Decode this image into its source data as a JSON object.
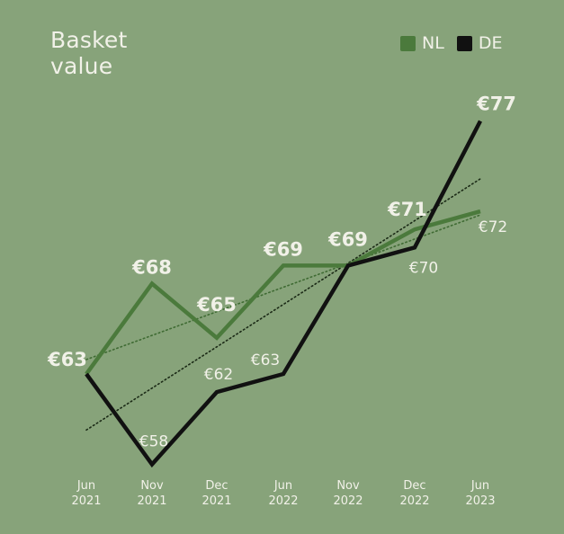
{
  "chart_data": {
    "type": "line",
    "title": "Basket\nvalue",
    "categories": [
      [
        "Jun",
        "2021"
      ],
      [
        "Nov",
        "2021"
      ],
      [
        "Dec",
        "2021"
      ],
      [
        "Jun",
        "2022"
      ],
      [
        "Nov",
        "2022"
      ],
      [
        "Dec",
        "2022"
      ],
      [
        "Jun",
        "2023"
      ]
    ],
    "ylim": [
      56,
      79
    ],
    "legend_position": "top-right",
    "series": [
      {
        "name": "NL",
        "color": "#4b7a3c",
        "values": [
          63,
          68,
          65,
          69,
          69,
          71,
          72
        ],
        "labels": [
          "€63",
          "€68",
          "€65",
          "€69",
          "€69",
          "€71",
          "€72"
        ]
      },
      {
        "name": "DE",
        "color": "#111111",
        "values": [
          63,
          58,
          62,
          63,
          69,
          70,
          77
        ],
        "labels": [
          "",
          "€58",
          "€62",
          "€63",
          "",
          "€70",
          "€77"
        ]
      }
    ],
    "trendlines": [
      {
        "series": "NL",
        "style": "dotted",
        "from": 63.8,
        "to": 71.8
      },
      {
        "series": "DE",
        "style": "dotted",
        "from": 59.9,
        "to": 73.8
      }
    ]
  }
}
